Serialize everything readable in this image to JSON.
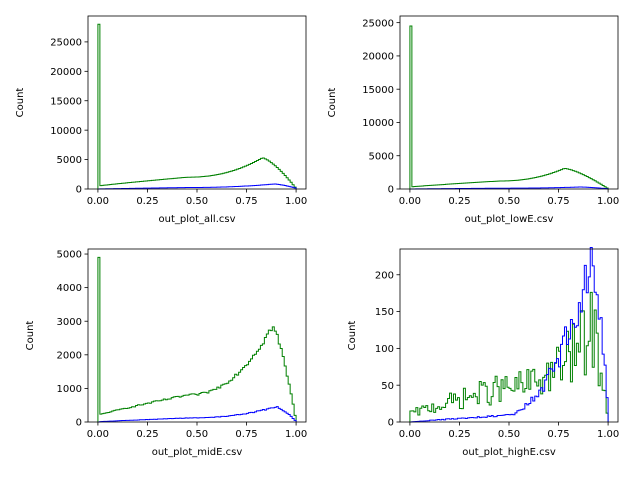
{
  "chart_data": [
    {
      "type": "histogram",
      "xlabel": "out_plot_all.csv",
      "ylabel": "Count",
      "xlim": [
        -0.05,
        1.05
      ],
      "ylim": [
        0,
        29400
      ],
      "xticks": [
        0.0,
        0.25,
        0.5,
        0.75,
        1.0
      ],
      "xtick_labels": [
        "0.00",
        "0.25",
        "0.50",
        "0.75",
        "1.00"
      ],
      "yticks": [
        0,
        5000,
        10000,
        15000,
        20000,
        25000
      ],
      "ytick_labels": [
        "0",
        "5000",
        "10000",
        "15000",
        "20000",
        "25000"
      ],
      "bins": 100,
      "grid": false,
      "series": [
        {
          "color": "#008000",
          "spike": 28000,
          "start": 500,
          "mid": 2000,
          "peak": 5300,
          "peak_x": 0.83,
          "end": 100,
          "noise": 0.0
        },
        {
          "color": "#0000ff",
          "spike": 0,
          "start": 0,
          "mid": 250,
          "peak": 850,
          "peak_x": 0.89,
          "end": 150,
          "noise": 0.0
        }
      ]
    },
    {
      "type": "histogram",
      "xlabel": "out_plot_lowE.csv",
      "ylabel": "Count",
      "xlim": [
        -0.05,
        1.05
      ],
      "ylim": [
        0,
        26000
      ],
      "xticks": [
        0.0,
        0.25,
        0.5,
        0.75,
        1.0
      ],
      "xtick_labels": [
        "0.00",
        "0.25",
        "0.50",
        "0.75",
        "1.00"
      ],
      "yticks": [
        0,
        5000,
        10000,
        15000,
        20000,
        25000
      ],
      "ytick_labels": [
        "0",
        "5000",
        "10000",
        "15000",
        "20000",
        "25000"
      ],
      "bins": 100,
      "grid": false,
      "series": [
        {
          "color": "#008000",
          "spike": 24500,
          "start": 300,
          "mid": 1200,
          "peak": 3100,
          "peak_x": 0.78,
          "end": 50,
          "noise": 0.0
        },
        {
          "color": "#0000ff",
          "spike": 0,
          "start": 0,
          "mid": 120,
          "peak": 300,
          "peak_x": 0.86,
          "end": 30,
          "noise": 0.0
        }
      ]
    },
    {
      "type": "histogram",
      "xlabel": "out_plot_midE.csv",
      "ylabel": "Count",
      "xlim": [
        -0.05,
        1.05
      ],
      "ylim": [
        0,
        5150
      ],
      "xticks": [
        0.0,
        0.25,
        0.5,
        0.75,
        1.0
      ],
      "xtick_labels": [
        "0.00",
        "0.25",
        "0.50",
        "0.75",
        "1.00"
      ],
      "yticks": [
        0,
        1000,
        2000,
        3000,
        4000,
        5000
      ],
      "ytick_labels": [
        "0",
        "1000",
        "2000",
        "3000",
        "4000",
        "5000"
      ],
      "bins": 100,
      "grid": false,
      "series": [
        {
          "color": "#008000",
          "spike": 4900,
          "start": 200,
          "mid": 800,
          "peak": 2850,
          "peak_x": 0.88,
          "end": 40,
          "noise": 0.04
        },
        {
          "color": "#0000ff",
          "spike": 0,
          "start": 5,
          "mid": 120,
          "peak": 450,
          "peak_x": 0.9,
          "end": 20,
          "noise": 0.05
        }
      ]
    },
    {
      "type": "histogram",
      "xlabel": "out_plot_highE.csv",
      "ylabel": "Count",
      "xlim": [
        -0.05,
        1.05
      ],
      "ylim": [
        0,
        235
      ],
      "xticks": [
        0.0,
        0.25,
        0.5,
        0.75,
        1.0
      ],
      "xtick_labels": [
        "0.00",
        "0.25",
        "0.50",
        "0.75",
        "1.00"
      ],
      "yticks": [
        0,
        50,
        100,
        150,
        200
      ],
      "ytick_labels": [
        "0",
        "50",
        "100",
        "150",
        "200"
      ],
      "bins": 100,
      "grid": false,
      "series": [
        {
          "color": "#008000",
          "spike": 15,
          "start": 10,
          "mid": 45,
          "peak": 125,
          "peak_x": 0.92,
          "end": 5,
          "noise": 0.45
        },
        {
          "color": "#0000ff",
          "spike": 0,
          "start": 0,
          "mid": 8,
          "peak": 222,
          "peak_x": 0.92,
          "end": 15,
          "noise": 0.18
        }
      ]
    }
  ]
}
